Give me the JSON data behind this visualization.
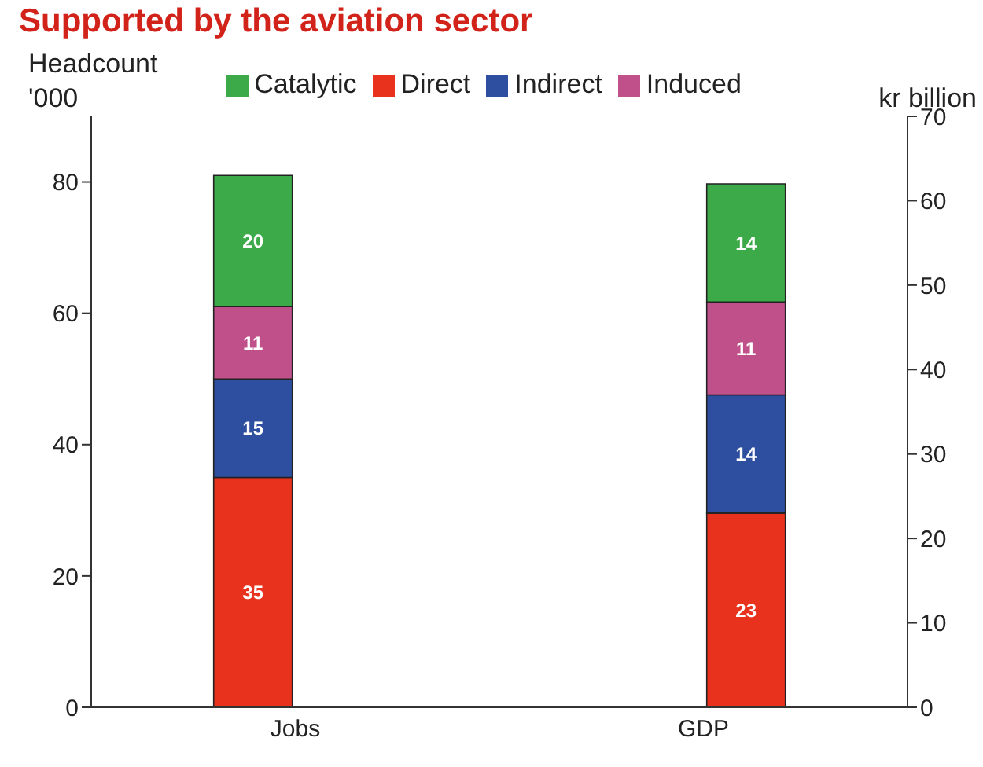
{
  "chart_data": {
    "type": "bar",
    "title": "Supported by the aviation sector",
    "ylabel": "Headcount\n'000",
    "y2label": "kr billion",
    "categories": [
      "Jobs",
      "GDP"
    ],
    "stacked": true,
    "data_labels": true,
    "legend": "top",
    "grid": false,
    "series": [
      {
        "name": "Direct",
        "color": "#e8321e",
        "values": [
          35,
          null
        ]
      },
      {
        "name": "Indirect",
        "color": "#2e4fa0",
        "values": [
          15,
          null
        ]
      },
      {
        "name": "Induced",
        "color": "#c0508a",
        "values": [
          11,
          null
        ]
      },
      {
        "name": "Catalytic",
        "color": "#3daa4a",
        "values": [
          20,
          null
        ]
      },
      {
        "color": "#e8321e",
        "axis": "y2",
        "values": [
          null,
          23
        ]
      },
      {
        "color": "#2e4fa0",
        "axis": "y2",
        "values": [
          null,
          14
        ]
      },
      {
        "color": "#c0508a",
        "axis": "y2",
        "values": [
          null,
          11
        ]
      },
      {
        "color": "#3daa4a",
        "axis": "y2",
        "values": [
          null,
          14
        ]
      }
    ],
    "ylim": [
      0,
      90
    ],
    "yticks": [
      0,
      20,
      40,
      60,
      80
    ],
    "y2lim": [
      0,
      70
    ],
    "y2ticks": [
      0,
      10,
      20,
      30,
      40,
      50,
      60,
      70
    ]
  }
}
